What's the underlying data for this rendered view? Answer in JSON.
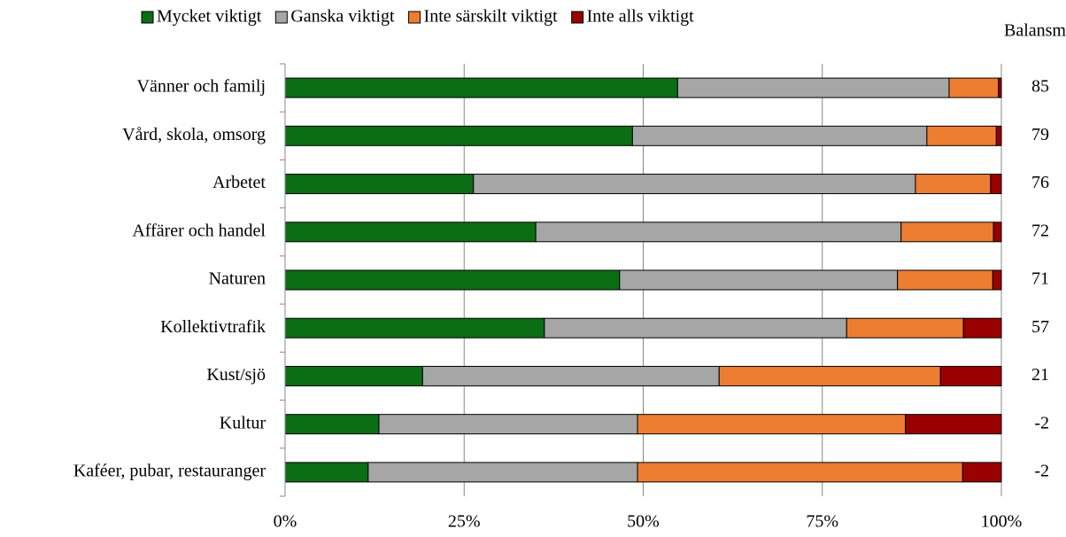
{
  "chart_data": {
    "type": "stacked_barh",
    "categories": [
      "Vänner och familj",
      "Vård, skola, omsorg",
      "Arbetet",
      "Affärer och handel",
      "Naturen",
      "Kollektivtrafik",
      "Kust/sjö",
      "Kultur",
      "Kaféer, pubar, restauranger"
    ],
    "series": [
      {
        "name": "Mycket viktigt",
        "color": "#0b6e14",
        "values": [
          54.8,
          48.5,
          26.3,
          35.0,
          46.7,
          36.2,
          19.2,
          13.1,
          11.6
        ]
      },
      {
        "name": "Ganska viktigt",
        "color": "#a6a6a6",
        "values": [
          37.9,
          41.1,
          61.7,
          51.0,
          38.8,
          42.2,
          41.4,
          36.1,
          37.6
        ]
      },
      {
        "name": "Inte särskilt viktigt",
        "color": "#ed7d31",
        "values": [
          6.9,
          9.7,
          10.5,
          12.9,
          13.3,
          16.3,
          30.9,
          37.4,
          45.4
        ]
      },
      {
        "name": "Inte alls viktigt",
        "color": "#990000",
        "values": [
          0.4,
          0.7,
          1.5,
          1.1,
          1.2,
          5.3,
          8.5,
          13.4,
          5.4
        ]
      }
    ],
    "balance_label": "Balansm",
    "balance": [
      85,
      79,
      76,
      72,
      71,
      57,
      21,
      -2,
      -2
    ],
    "xlim": [
      0,
      100
    ],
    "xticks": [
      {
        "value": 0,
        "label": "0%"
      },
      {
        "value": 25,
        "label": "25%"
      },
      {
        "value": 50,
        "label": "50%"
      },
      {
        "value": 75,
        "label": "75%"
      },
      {
        "value": 100,
        "label": "100%"
      }
    ],
    "grid": true,
    "legend": "top"
  }
}
